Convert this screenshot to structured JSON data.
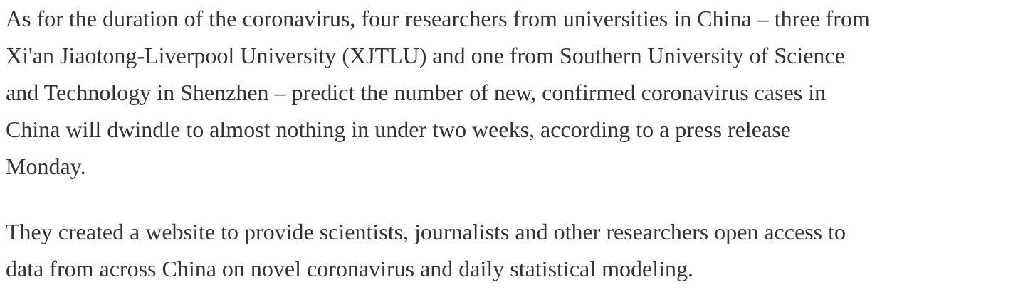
{
  "article": {
    "paragraphs": [
      {
        "lines": [
          "As for the duration of the coronavirus, four researchers from universities in China – three from",
          "Xi'an Jiaotong-Liverpool University (XJTLU) and one from Southern University of Science",
          "and Technology in Shenzhen – predict the number of new, confirmed coronavirus cases in",
          "China will dwindle to almost nothing in under two weeks, according to a press release",
          "Monday."
        ]
      },
      {
        "lines": [
          "They created a website to provide scientists, journalists and other researchers open access to",
          "data from across China on novel coronavirus and daily statistical modeling."
        ]
      }
    ]
  },
  "colors": {
    "text": "#333333",
    "background": "#ffffff"
  }
}
